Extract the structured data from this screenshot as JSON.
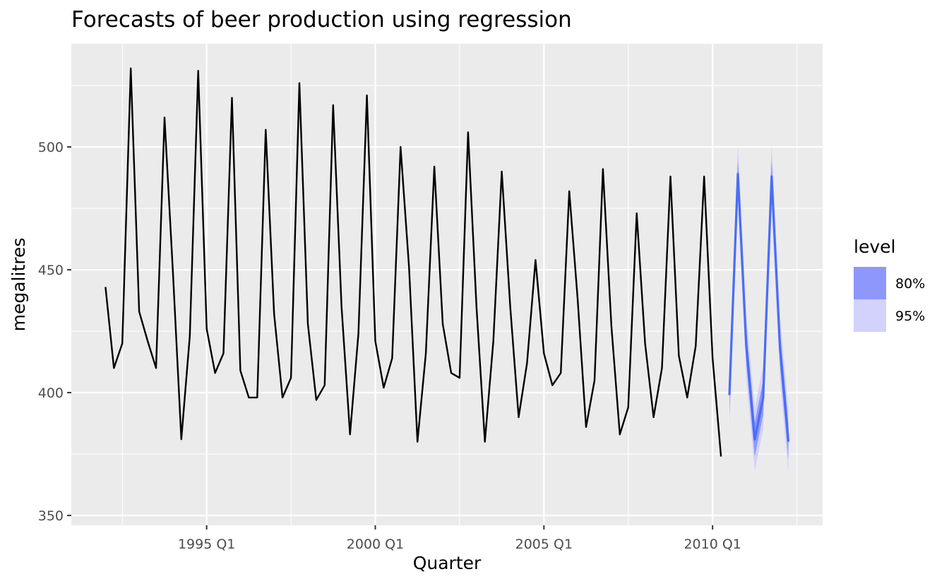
{
  "chart_data": {
    "type": "line",
    "title": "Forecasts of beer production using regression",
    "xlabel": "Quarter",
    "ylabel": "megalitres",
    "x_ticks": [
      "1995 Q1",
      "2000 Q1",
      "2005 Q1",
      "2010 Q1"
    ],
    "y_ticks": [
      350,
      400,
      450,
      500
    ],
    "ylim": [
      346,
      542
    ],
    "grid": true,
    "legend": {
      "title": "level",
      "position": "right",
      "entries": [
        {
          "label": "80%",
          "color": "#8e97fc"
        },
        {
          "label": "95%",
          "color": "#d2d2fc"
        }
      ]
    },
    "series": [
      {
        "x": [
          "1992 Q1",
          "1992 Q2",
          "1992 Q3",
          "1992 Q4",
          "1993 Q1",
          "1993 Q2",
          "1993 Q3",
          "1993 Q4",
          "1994 Q1",
          "1994 Q2",
          "1994 Q3",
          "1994 Q4",
          "1995 Q1",
          "1995 Q2",
          "1995 Q3",
          "1995 Q4",
          "1996 Q1",
          "1996 Q2",
          "1996 Q3",
          "1996 Q4",
          "1997 Q1",
          "1997 Q2",
          "1997 Q3",
          "1997 Q4",
          "1998 Q1",
          "1998 Q2",
          "1998 Q3",
          "1998 Q4",
          "1999 Q1",
          "1999 Q2",
          "1999 Q3",
          "1999 Q4",
          "2000 Q1",
          "2000 Q2",
          "2000 Q3",
          "2000 Q4",
          "2001 Q1",
          "2001 Q2",
          "2001 Q3",
          "2001 Q4",
          "2002 Q1",
          "2002 Q2",
          "2002 Q3",
          "2002 Q4",
          "2003 Q1",
          "2003 Q2",
          "2003 Q3",
          "2003 Q4",
          "2004 Q1",
          "2004 Q2",
          "2004 Q3",
          "2004 Q4",
          "2005 Q1",
          "2005 Q2",
          "2005 Q3",
          "2005 Q4",
          "2006 Q1",
          "2006 Q2",
          "2006 Q3",
          "2006 Q4",
          "2007 Q1",
          "2007 Q2",
          "2007 Q3",
          "2007 Q4",
          "2008 Q1",
          "2008 Q2",
          "2008 Q3",
          "2008 Q4",
          "2009 Q1",
          "2009 Q2",
          "2009 Q3",
          "2009 Q4",
          "2010 Q1",
          "2010 Q2"
        ],
        "values": [
          443,
          410,
          420,
          532,
          433,
          421,
          410,
          512,
          449,
          381,
          423,
          531,
          426,
          408,
          416,
          520,
          409,
          398,
          398,
          507,
          432,
          398,
          406,
          526,
          428,
          397,
          403,
          517,
          435,
          383,
          424,
          521,
          421,
          402,
          414,
          500,
          451,
          380,
          416,
          492,
          428,
          408,
          406,
          506,
          435,
          380,
          421,
          490,
          435,
          390,
          412,
          454,
          416,
          403,
          408,
          482,
          438,
          386,
          405,
          491,
          427,
          383,
          394,
          473,
          420,
          390,
          410,
          488,
          415,
          398,
          419,
          488,
          414,
          374
        ],
        "color": "#000000"
      },
      {
        "x": [
          "2010 Q3",
          "2010 Q4",
          "2011 Q1",
          "2011 Q2",
          "2011 Q3",
          "2011 Q4",
          "2012 Q1",
          "2012 Q2"
        ],
        "values": [
          399,
          489,
          419,
          381,
          398,
          488,
          418,
          380
        ],
        "color": "#4a6df4"
      }
    ],
    "intervals": [
      {
        "level": "95%",
        "lower": [
          386,
          477,
          406,
          368,
          385,
          475,
          405,
          367
        ],
        "upper": [
          412,
          501,
          432,
          394,
          411,
          501,
          431,
          393
        ]
      },
      {
        "level": "80%",
        "lower": [
          392,
          483,
          412,
          374,
          391,
          481,
          411,
          373
        ],
        "upper": [
          406,
          495,
          426,
          388,
          405,
          495,
          425,
          387
        ]
      }
    ],
    "background": "#ebebeb",
    "grid_color": "#ffffff"
  }
}
